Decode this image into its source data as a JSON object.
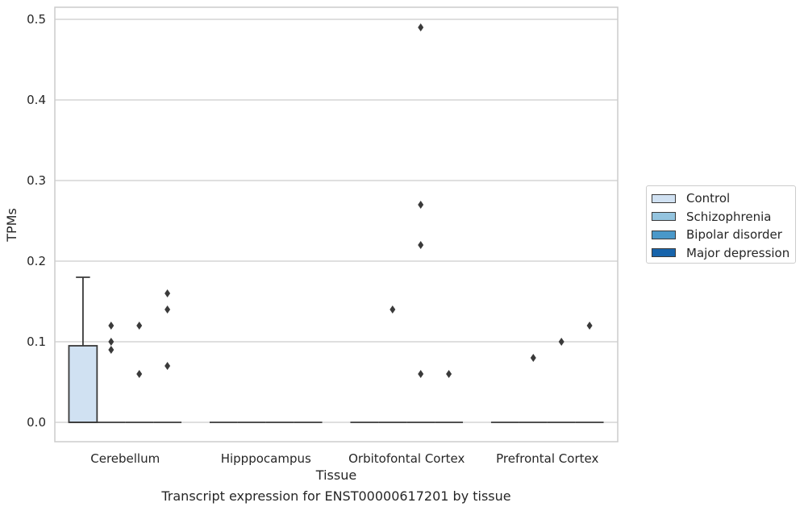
{
  "chart_data": {
    "type": "box",
    "caption": "Transcript expression for ENST00000617201 by tissue",
    "xlabel": "Tissue",
    "ylabel": "TPMs",
    "ylim": [
      -0.024,
      0.515
    ],
    "yticks": [
      0.0,
      0.1,
      0.2,
      0.3,
      0.4,
      0.5
    ],
    "ytick_labels": [
      "0.0",
      "0.1",
      "0.2",
      "0.3",
      "0.4",
      "0.5"
    ],
    "grid": "horizontal",
    "legend_position": "right",
    "categories": [
      "Cerebellum",
      "Hipppocampus",
      "Orbitofontal Cortex",
      "Prefrontal Cortex"
    ],
    "series": [
      {
        "name": "Control",
        "color": "#d0e1f2",
        "boxes": [
          {
            "q1": 0.0,
            "median": 0.0,
            "q3": 0.095,
            "whisker_low": 0.0,
            "whisker_high": 0.18,
            "outliers": []
          },
          {
            "q1": 0.0,
            "median": 0.0,
            "q3": 0.0,
            "whisker_low": 0.0,
            "whisker_high": 0.0,
            "outliers": []
          },
          {
            "q1": 0.0,
            "median": 0.0,
            "q3": 0.0,
            "whisker_low": 0.0,
            "whisker_high": 0.0,
            "outliers": []
          },
          {
            "q1": 0.0,
            "median": 0.0,
            "q3": 0.0,
            "whisker_low": 0.0,
            "whisker_high": 0.0,
            "outliers": []
          }
        ]
      },
      {
        "name": "Schizophrenia",
        "color": "#94c4df",
        "boxes": [
          {
            "q1": 0.0,
            "median": 0.0,
            "q3": 0.0,
            "whisker_low": 0.0,
            "whisker_high": 0.0,
            "outliers": [
              0.09,
              0.1,
              0.12
            ]
          },
          {
            "q1": 0.0,
            "median": 0.0,
            "q3": 0.0,
            "whisker_low": 0.0,
            "whisker_high": 0.0,
            "outliers": []
          },
          {
            "q1": 0.0,
            "median": 0.0,
            "q3": 0.0,
            "whisker_low": 0.0,
            "whisker_high": 0.0,
            "outliers": [
              0.14
            ]
          },
          {
            "q1": 0.0,
            "median": 0.0,
            "q3": 0.0,
            "whisker_low": 0.0,
            "whisker_high": 0.0,
            "outliers": [
              0.08
            ]
          }
        ]
      },
      {
        "name": "Bipolar disorder",
        "color": "#4a98c9",
        "boxes": [
          {
            "q1": 0.0,
            "median": 0.0,
            "q3": 0.0,
            "whisker_low": 0.0,
            "whisker_high": 0.0,
            "outliers": [
              0.06,
              0.12
            ]
          },
          {
            "q1": 0.0,
            "median": 0.0,
            "q3": 0.0,
            "whisker_low": 0.0,
            "whisker_high": 0.0,
            "outliers": []
          },
          {
            "q1": 0.0,
            "median": 0.0,
            "q3": 0.0,
            "whisker_low": 0.0,
            "whisker_high": 0.0,
            "outliers": [
              0.06,
              0.22,
              0.27,
              0.49
            ]
          },
          {
            "q1": 0.0,
            "median": 0.0,
            "q3": 0.0,
            "whisker_low": 0.0,
            "whisker_high": 0.0,
            "outliers": [
              0.1
            ]
          }
        ]
      },
      {
        "name": "Major depression",
        "color": "#1764ab",
        "boxes": [
          {
            "q1": 0.0,
            "median": 0.0,
            "q3": 0.0,
            "whisker_low": 0.0,
            "whisker_high": 0.0,
            "outliers": [
              0.07,
              0.14,
              0.16
            ]
          },
          {
            "q1": 0.0,
            "median": 0.0,
            "q3": 0.0,
            "whisker_low": 0.0,
            "whisker_high": 0.0,
            "outliers": []
          },
          {
            "q1": 0.0,
            "median": 0.0,
            "q3": 0.0,
            "whisker_low": 0.0,
            "whisker_high": 0.0,
            "outliers": [
              0.06
            ]
          },
          {
            "q1": 0.0,
            "median": 0.0,
            "q3": 0.0,
            "whisker_low": 0.0,
            "whisker_high": 0.0,
            "outliers": [
              0.12
            ]
          }
        ]
      }
    ]
  }
}
